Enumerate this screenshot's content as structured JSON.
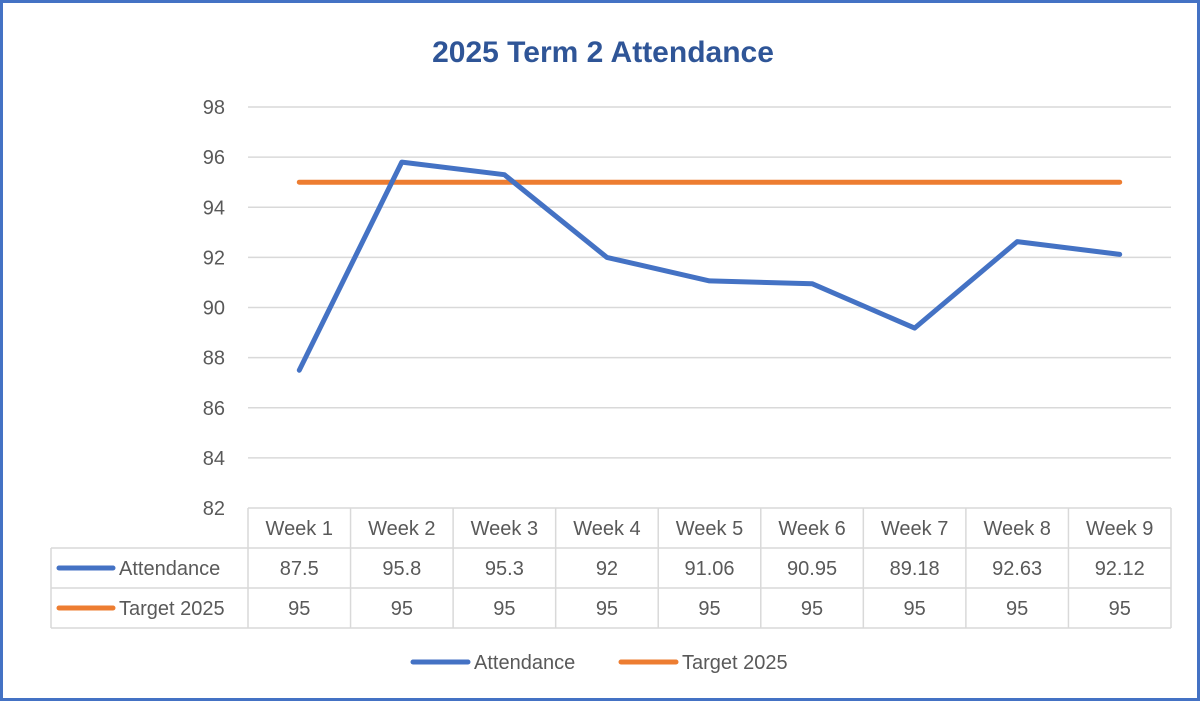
{
  "chart_data": {
    "type": "line",
    "title": "2025 Term 2 Attendance",
    "categories": [
      "Week 1",
      "Week 2",
      "Week 3",
      "Week 4",
      "Week 5",
      "Week 6",
      "Week 7",
      "Week 8",
      "Week 9"
    ],
    "series": [
      {
        "name": "Attendance",
        "values": [
          87.5,
          95.8,
          95.3,
          92,
          91.06,
          90.95,
          89.18,
          92.63,
          92.12
        ],
        "color": "#4472C4"
      },
      {
        "name": "Target 2025",
        "values": [
          95,
          95,
          95,
          95,
          95,
          95,
          95,
          95,
          95
        ],
        "color": "#ED7D31"
      }
    ],
    "y_ticks": [
      98,
      96,
      94,
      92,
      90,
      88,
      86,
      84,
      82
    ],
    "ylim": [
      82,
      98
    ],
    "grid": true,
    "data_table": true,
    "legend_position": "bottom",
    "colors": {
      "border": "#4472C4",
      "title": "#2F5597",
      "grid": "#D9D9D9",
      "text": "#595959"
    }
  }
}
